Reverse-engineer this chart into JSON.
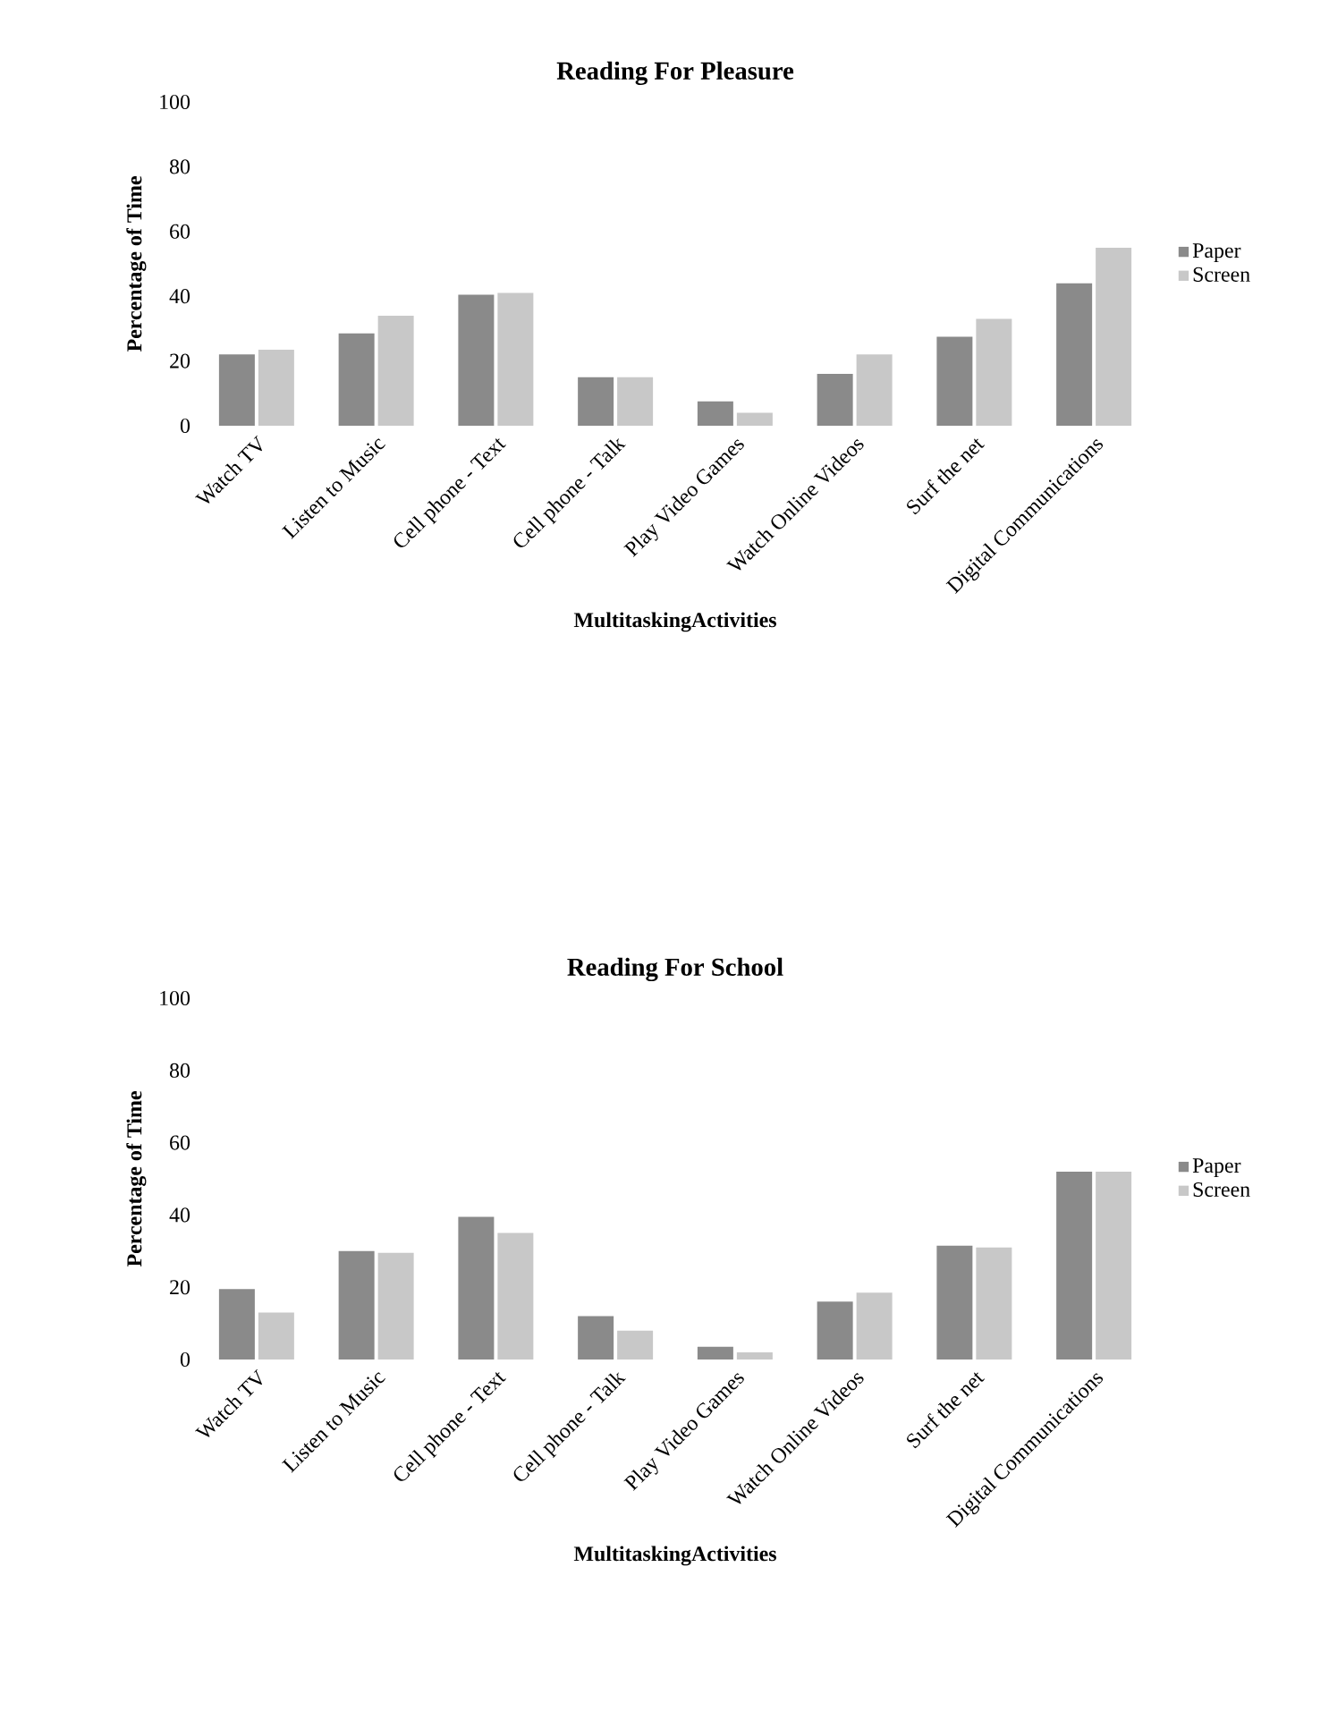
{
  "chart_data": [
    {
      "type": "bar",
      "title": "Reading For Pleasure",
      "xlabel": "MultitaskingActivities",
      "ylabel": "Percentage of Time",
      "categories": [
        "Watch TV",
        "Listen to Music",
        "Cell phone - Text",
        "Cell phone - Talk",
        "Play Video Games",
        "Watch Online Videos",
        "Surf the net",
        "Digital Communications"
      ],
      "series": [
        {
          "name": "Paper",
          "color": "#8a8a8a",
          "values": [
            22,
            28.5,
            40.5,
            15,
            7.5,
            16,
            27.5,
            44
          ]
        },
        {
          "name": "Screen",
          "color": "#c8c8c8",
          "values": [
            23.5,
            34,
            41,
            15,
            4,
            22,
            33,
            55
          ]
        }
      ],
      "ylim": [
        0,
        100
      ],
      "yticks": [
        0,
        20,
        40,
        60,
        80,
        100
      ],
      "grid": false,
      "legend": "right"
    },
    {
      "type": "bar",
      "title": "Reading For School",
      "xlabel": "MultitaskingActivities",
      "ylabel": "Percentage of Time",
      "categories": [
        "Watch TV",
        "Listen to Music",
        "Cell phone - Text",
        "Cell phone - Talk",
        "Play Video Games",
        "Watch Online Videos",
        "Surf the net",
        "Digital Communications"
      ],
      "series": [
        {
          "name": "Paper",
          "color": "#8a8a8a",
          "values": [
            19.5,
            30,
            39.5,
            12,
            3.5,
            16,
            31.5,
            52
          ]
        },
        {
          "name": "Screen",
          "color": "#c8c8c8",
          "values": [
            13,
            29.5,
            35,
            8,
            2,
            18.5,
            31,
            52
          ]
        }
      ],
      "ylim": [
        0,
        100
      ],
      "yticks": [
        0,
        20,
        40,
        60,
        80,
        100
      ],
      "grid": false,
      "legend": "right"
    }
  ]
}
